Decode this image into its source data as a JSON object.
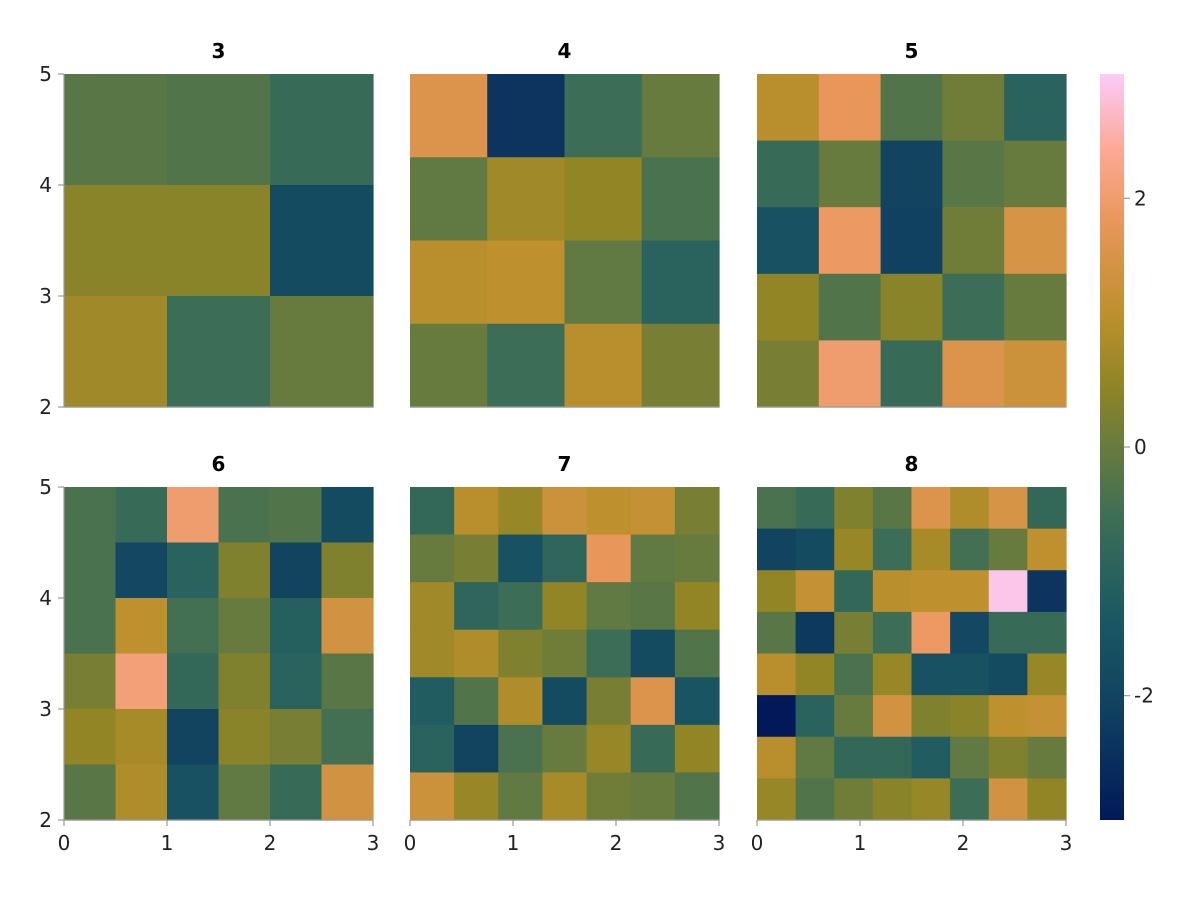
{
  "chart_data": {
    "type": "heatmap",
    "colormap": "batlow",
    "colorrange": [
      -3.0,
      3.0
    ],
    "colorbar": {
      "ticks": [
        "-2",
        "0",
        "2"
      ],
      "tick_values": [
        -2,
        0,
        2
      ],
      "position": "right"
    },
    "xlim": [
      0,
      3
    ],
    "ylim": [
      2,
      5
    ],
    "x_ticks": [
      "0",
      "1",
      "2",
      "3"
    ],
    "y_ticks": [
      "2",
      "3",
      "4",
      "5"
    ],
    "grid": false,
    "panels": [
      {
        "title": "3",
        "rows": [
          [
            -0.2,
            -0.3,
            -0.7
          ],
          [
            0.4,
            0.4,
            -1.8
          ],
          [
            0.7,
            -0.6,
            0.0
          ]
        ]
      },
      {
        "title": "4",
        "rows": [
          [
            1.6,
            -2.4,
            -0.6,
            0.0
          ],
          [
            -0.1,
            0.7,
            0.5,
            -0.4
          ],
          [
            1.0,
            1.1,
            -0.1,
            -1.0
          ],
          [
            0.0,
            -0.6,
            1.0,
            0.2
          ]
        ]
      },
      {
        "title": "5",
        "rows": [
          [
            1.0,
            1.8,
            -0.3,
            0.1,
            -1.0
          ],
          [
            -0.7,
            0.0,
            -2.0,
            -0.2,
            0.0
          ],
          [
            -1.6,
            1.9,
            -2.1,
            0.1,
            1.5
          ],
          [
            0.5,
            -0.3,
            0.4,
            -0.6,
            0.0
          ],
          [
            0.2,
            2.0,
            -0.7,
            1.6,
            1.3
          ]
        ]
      },
      {
        "title": "6",
        "rows": [
          [
            -0.4,
            -0.7,
            2.0,
            -0.4,
            -0.3,
            -1.8
          ],
          [
            -0.4,
            -1.9,
            -1.0,
            0.3,
            -2.0,
            0.3
          ],
          [
            -0.4,
            1.1,
            -0.5,
            0.0,
            -1.1,
            1.4
          ],
          [
            0.2,
            2.1,
            -0.8,
            0.3,
            -1.0,
            -0.2
          ],
          [
            0.5,
            0.8,
            -2.0,
            0.4,
            0.2,
            -0.5
          ],
          [
            -0.2,
            0.9,
            -1.6,
            -0.1,
            -0.7,
            1.4
          ]
        ]
      },
      {
        "title": "7",
        "rows": [
          [
            -0.8,
            1.0,
            0.6,
            1.3,
            1.1,
            1.2,
            0.2
          ],
          [
            0.0,
            0.2,
            -1.6,
            -0.9,
            1.8,
            -0.1,
            0.0
          ],
          [
            0.7,
            -0.9,
            -0.6,
            0.5,
            -0.1,
            -0.2,
            0.5
          ],
          [
            0.7,
            0.9,
            0.3,
            0.1,
            -0.6,
            -1.8,
            -0.3
          ],
          [
            -1.2,
            -0.3,
            0.9,
            -1.8,
            0.2,
            1.6,
            -1.5
          ],
          [
            -1.0,
            -2.0,
            -0.4,
            0.0,
            0.6,
            -0.7,
            0.5
          ],
          [
            1.3,
            0.6,
            -0.1,
            0.8,
            0.1,
            0.0,
            -0.3
          ]
        ]
      },
      {
        "title": "8",
        "rows": [
          [
            -0.4,
            -0.7,
            0.3,
            -0.2,
            1.6,
            0.9,
            1.5,
            -0.8
          ],
          [
            -2.0,
            -1.8,
            0.6,
            -0.6,
            0.8,
            -0.5,
            0.0,
            1.1
          ],
          [
            0.5,
            1.2,
            -0.8,
            1.0,
            1.1,
            1.1,
            2.9,
            -2.4
          ],
          [
            -0.2,
            -2.3,
            0.2,
            -0.6,
            1.9,
            -1.9,
            -0.7,
            -0.7
          ],
          [
            1.0,
            0.5,
            -0.4,
            0.6,
            -1.6,
            -1.6,
            -1.8,
            0.6
          ],
          [
            -3.0,
            -1.0,
            0.0,
            1.4,
            0.3,
            0.4,
            1.1,
            1.2
          ],
          [
            1.0,
            -0.1,
            -0.8,
            -0.8,
            -1.2,
            -0.1,
            0.3,
            0.0
          ],
          [
            0.6,
            -0.3,
            0.1,
            0.4,
            0.6,
            -0.6,
            1.4,
            0.5
          ]
        ]
      }
    ]
  }
}
